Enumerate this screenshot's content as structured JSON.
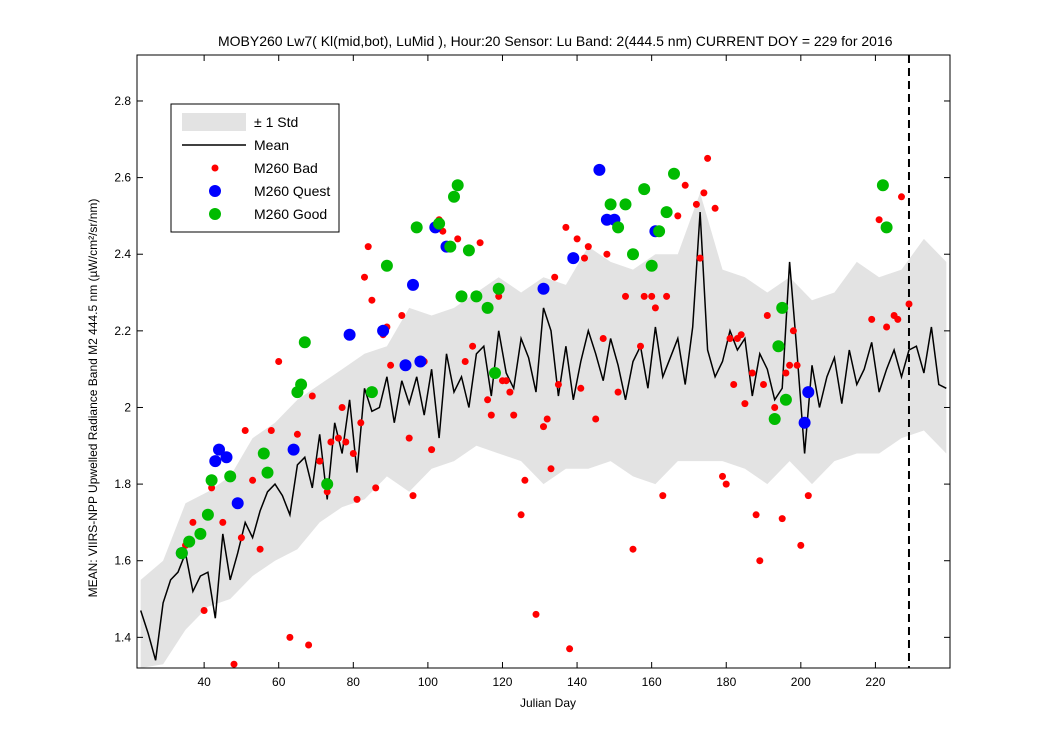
{
  "chart_data": {
    "type": "line",
    "title": "MOBY260   Lw7( Kl(mid,bot), LuMid ),   Hour:20 Sensor: Lu Band: 2(444.5 nm)   CURRENT DOY = 229 for 2016",
    "xlabel": "Julian Day",
    "ylabel": "MEAN: VIIRS-NPP Upwelled Radiance Band M2 444.5 nm (µW/cm²/sr/nm)",
    "xlim": [
      22,
      240
    ],
    "ylim": [
      1.32,
      2.92
    ],
    "x_ticks": [
      40,
      60,
      80,
      100,
      120,
      140,
      160,
      180,
      200,
      220
    ],
    "x_tick_labels": [
      "40",
      "60",
      "80",
      "100",
      "120",
      "140",
      "160",
      "180",
      "200",
      "220"
    ],
    "y_ticks": [
      1.4,
      1.6,
      1.8,
      2.0,
      2.2,
      2.4,
      2.6,
      2.8
    ],
    "y_tick_labels": [
      "1.4",
      "1.6",
      "1.8",
      "2",
      "2.2",
      "2.4",
      "2.6",
      "2.8"
    ],
    "current_doy": 229,
    "legend_position": "top-left",
    "legend": [
      {
        "label": "± 1 Std",
        "kind": "band",
        "color": "#e3e3e3"
      },
      {
        "label": "Mean",
        "kind": "line",
        "color": "#000000"
      },
      {
        "label": "M260 Bad",
        "kind": "small-dot",
        "color": "#ff0000"
      },
      {
        "label": "M260 Quest",
        "kind": "dot",
        "color": "#0000ff"
      },
      {
        "label": "M260 Good",
        "kind": "dot",
        "color": "#00bb00"
      }
    ],
    "series": [
      {
        "name": "Mean",
        "role": "mean",
        "color": "#000000",
        "x": [
          23,
          25,
          27,
          29,
          31,
          33,
          35,
          37,
          39,
          41,
          43,
          45,
          47,
          49,
          51,
          53,
          55,
          57,
          59,
          61,
          63,
          65,
          67,
          69,
          71,
          73,
          75,
          77,
          79,
          81,
          83,
          85,
          87,
          89,
          91,
          93,
          95,
          97,
          99,
          101,
          103,
          105,
          107,
          109,
          111,
          113,
          115,
          117,
          119,
          121,
          123,
          125,
          127,
          129,
          131,
          133,
          135,
          137,
          139,
          141,
          143,
          145,
          147,
          149,
          151,
          153,
          155,
          157,
          159,
          161,
          163,
          165,
          167,
          169,
          171,
          173,
          175,
          177,
          179,
          181,
          183,
          185,
          187,
          189,
          191,
          193,
          195,
          197,
          199,
          201,
          203,
          205,
          207,
          209,
          211,
          213,
          215,
          217,
          219,
          221,
          223,
          225,
          227,
          229,
          231,
          233,
          235,
          237,
          239
        ],
        "y": [
          1.47,
          1.41,
          1.34,
          1.49,
          1.55,
          1.57,
          1.62,
          1.52,
          1.56,
          1.57,
          1.45,
          1.67,
          1.55,
          1.62,
          1.7,
          1.66,
          1.73,
          1.78,
          1.8,
          1.77,
          1.72,
          1.85,
          1.87,
          1.79,
          1.93,
          1.76,
          1.96,
          1.88,
          2.02,
          1.83,
          2.05,
          1.99,
          2.0,
          2.08,
          1.96,
          2.07,
          2.01,
          2.08,
          1.98,
          2.1,
          1.92,
          2.14,
          2.04,
          2.08,
          2.0,
          2.14,
          2.16,
          2.03,
          2.2,
          2.09,
          2.05,
          2.18,
          2.13,
          2.04,
          2.26,
          2.2,
          2.03,
          2.16,
          2.02,
          2.12,
          2.2,
          2.14,
          2.07,
          2.18,
          2.11,
          2.02,
          2.12,
          2.16,
          2.05,
          2.21,
          2.08,
          2.13,
          2.18,
          2.06,
          2.21,
          2.51,
          2.15,
          2.08,
          2.12,
          2.2,
          2.15,
          2.18,
          2.03,
          2.14,
          2.1,
          2.02,
          2.05,
          2.38,
          2.14,
          1.88,
          2.11,
          2.0,
          2.08,
          2.13,
          2.01,
          2.15,
          2.06,
          2.1,
          2.17,
          2.04,
          2.1,
          2.15,
          2.08,
          2.15,
          2.16,
          2.09,
          2.21,
          2.06,
          2.05
        ]
      },
      {
        "name": "± 1 Std",
        "role": "band",
        "color": "#e3e3e3",
        "x": [
          23,
          29,
          35,
          41,
          47,
          53,
          59,
          65,
          71,
          77,
          83,
          89,
          95,
          101,
          107,
          113,
          119,
          125,
          131,
          137,
          143,
          149,
          155,
          161,
          167,
          173,
          179,
          185,
          191,
          197,
          203,
          209,
          215,
          221,
          227,
          233,
          239
        ],
        "upper": [
          1.55,
          1.6,
          1.75,
          1.78,
          1.82,
          1.92,
          1.96,
          2.02,
          2.06,
          2.1,
          2.14,
          2.16,
          2.26,
          2.24,
          2.26,
          2.3,
          2.34,
          2.3,
          2.34,
          2.32,
          2.42,
          2.38,
          2.36,
          2.4,
          2.4,
          2.56,
          2.36,
          2.34,
          2.3,
          2.34,
          2.28,
          2.3,
          2.38,
          2.34,
          2.36,
          2.44,
          2.38
        ],
        "lower": [
          1.32,
          1.33,
          1.42,
          1.48,
          1.5,
          1.56,
          1.6,
          1.63,
          1.7,
          1.74,
          1.76,
          1.82,
          1.78,
          1.84,
          1.86,
          1.9,
          1.88,
          1.86,
          1.8,
          1.84,
          1.84,
          1.86,
          1.82,
          1.8,
          1.86,
          1.86,
          1.86,
          1.84,
          1.8,
          1.86,
          1.8,
          1.86,
          1.88,
          1.88,
          1.92,
          1.94,
          1.88
        ]
      },
      {
        "name": "M260 Bad",
        "role": "bad",
        "color": "#ff0000",
        "x": [
          35,
          37,
          40,
          42,
          45,
          48,
          50,
          51,
          53,
          55,
          58,
          60,
          63,
          65,
          68,
          69,
          71,
          73,
          74,
          76,
          77,
          78,
          80,
          81,
          82,
          83,
          84,
          85,
          86,
          88,
          89,
          90,
          93,
          95,
          96,
          99,
          101,
          103,
          104,
          108,
          110,
          112,
          114,
          116,
          117,
          119,
          120,
          121,
          122,
          123,
          125,
          126,
          129,
          131,
          132,
          133,
          134,
          135,
          137,
          138,
          140,
          141,
          142,
          143,
          145,
          147,
          148,
          151,
          153,
          155,
          157,
          158,
          160,
          161,
          163,
          164,
          167,
          169,
          172,
          173,
          174,
          175,
          177,
          179,
          180,
          181,
          182,
          183,
          184,
          185,
          187,
          188,
          189,
          190,
          191,
          193,
          195,
          196,
          197,
          198,
          199,
          200,
          202,
          219,
          221,
          223,
          225,
          226,
          227,
          229
        ],
        "y": [
          1.64,
          1.7,
          1.47,
          1.79,
          1.7,
          1.33,
          1.66,
          1.94,
          1.81,
          1.63,
          1.94,
          2.12,
          1.4,
          1.93,
          1.38,
          2.03,
          1.86,
          1.78,
          1.91,
          1.92,
          2.0,
          1.91,
          1.88,
          1.76,
          1.96,
          2.34,
          2.42,
          2.28,
          1.79,
          2.19,
          2.21,
          2.11,
          2.24,
          1.92,
          1.77,
          2.12,
          1.89,
          2.49,
          2.46,
          2.44,
          2.12,
          2.16,
          2.43,
          2.02,
          1.98,
          2.29,
          2.07,
          2.07,
          2.04,
          1.98,
          1.72,
          1.81,
          1.46,
          1.95,
          1.97,
          1.84,
          2.34,
          2.06,
          2.47,
          1.37,
          2.44,
          2.05,
          2.39,
          2.42,
          1.97,
          2.18,
          2.4,
          2.04,
          2.29,
          1.63,
          2.16,
          2.29,
          2.29,
          2.26,
          1.77,
          2.29,
          2.5,
          2.58,
          2.53,
          2.39,
          2.56,
          2.65,
          2.52,
          1.82,
          1.8,
          2.18,
          2.06,
          2.18,
          2.19,
          2.01,
          2.09,
          1.72,
          1.6,
          2.06,
          2.24,
          2.0,
          1.71,
          2.09,
          2.11,
          2.2,
          2.11,
          1.64,
          1.77,
          2.23,
          2.49,
          2.21,
          2.24,
          2.23,
          2.55,
          2.27
        ]
      },
      {
        "name": "M260 Quest",
        "role": "quest",
        "color": "#0000ff",
        "x": [
          34,
          43,
          44,
          46,
          49,
          64,
          79,
          88,
          94,
          96,
          98,
          102,
          105,
          131,
          139,
          146,
          148,
          150,
          161,
          201,
          202
        ],
        "y": [
          1.62,
          1.86,
          1.89,
          1.87,
          1.75,
          1.89,
          2.19,
          2.2,
          2.11,
          2.32,
          2.12,
          2.47,
          2.42,
          2.31,
          2.39,
          2.62,
          2.49,
          2.49,
          2.46,
          1.96,
          2.04
        ]
      },
      {
        "name": "M260 Good",
        "role": "good",
        "color": "#00bb00",
        "x": [
          34,
          36,
          39,
          41,
          42,
          47,
          56,
          57,
          65,
          66,
          67,
          73,
          85,
          89,
          97,
          103,
          106,
          107,
          108,
          109,
          111,
          113,
          116,
          118,
          119,
          149,
          151,
          153,
          155,
          158,
          160,
          162,
          164,
          166,
          193,
          194,
          195,
          196,
          222,
          223
        ],
        "y": [
          1.62,
          1.65,
          1.67,
          1.72,
          1.81,
          1.82,
          1.88,
          1.83,
          2.04,
          2.06,
          2.17,
          1.8,
          2.04,
          2.37,
          2.47,
          2.48,
          2.42,
          2.55,
          2.58,
          2.29,
          2.41,
          2.29,
          2.26,
          2.09,
          2.31,
          2.53,
          2.47,
          2.53,
          2.4,
          2.57,
          2.37,
          2.46,
          2.51,
          2.61,
          1.97,
          2.16,
          2.26,
          2.02,
          2.58,
          2.47
        ]
      }
    ]
  }
}
